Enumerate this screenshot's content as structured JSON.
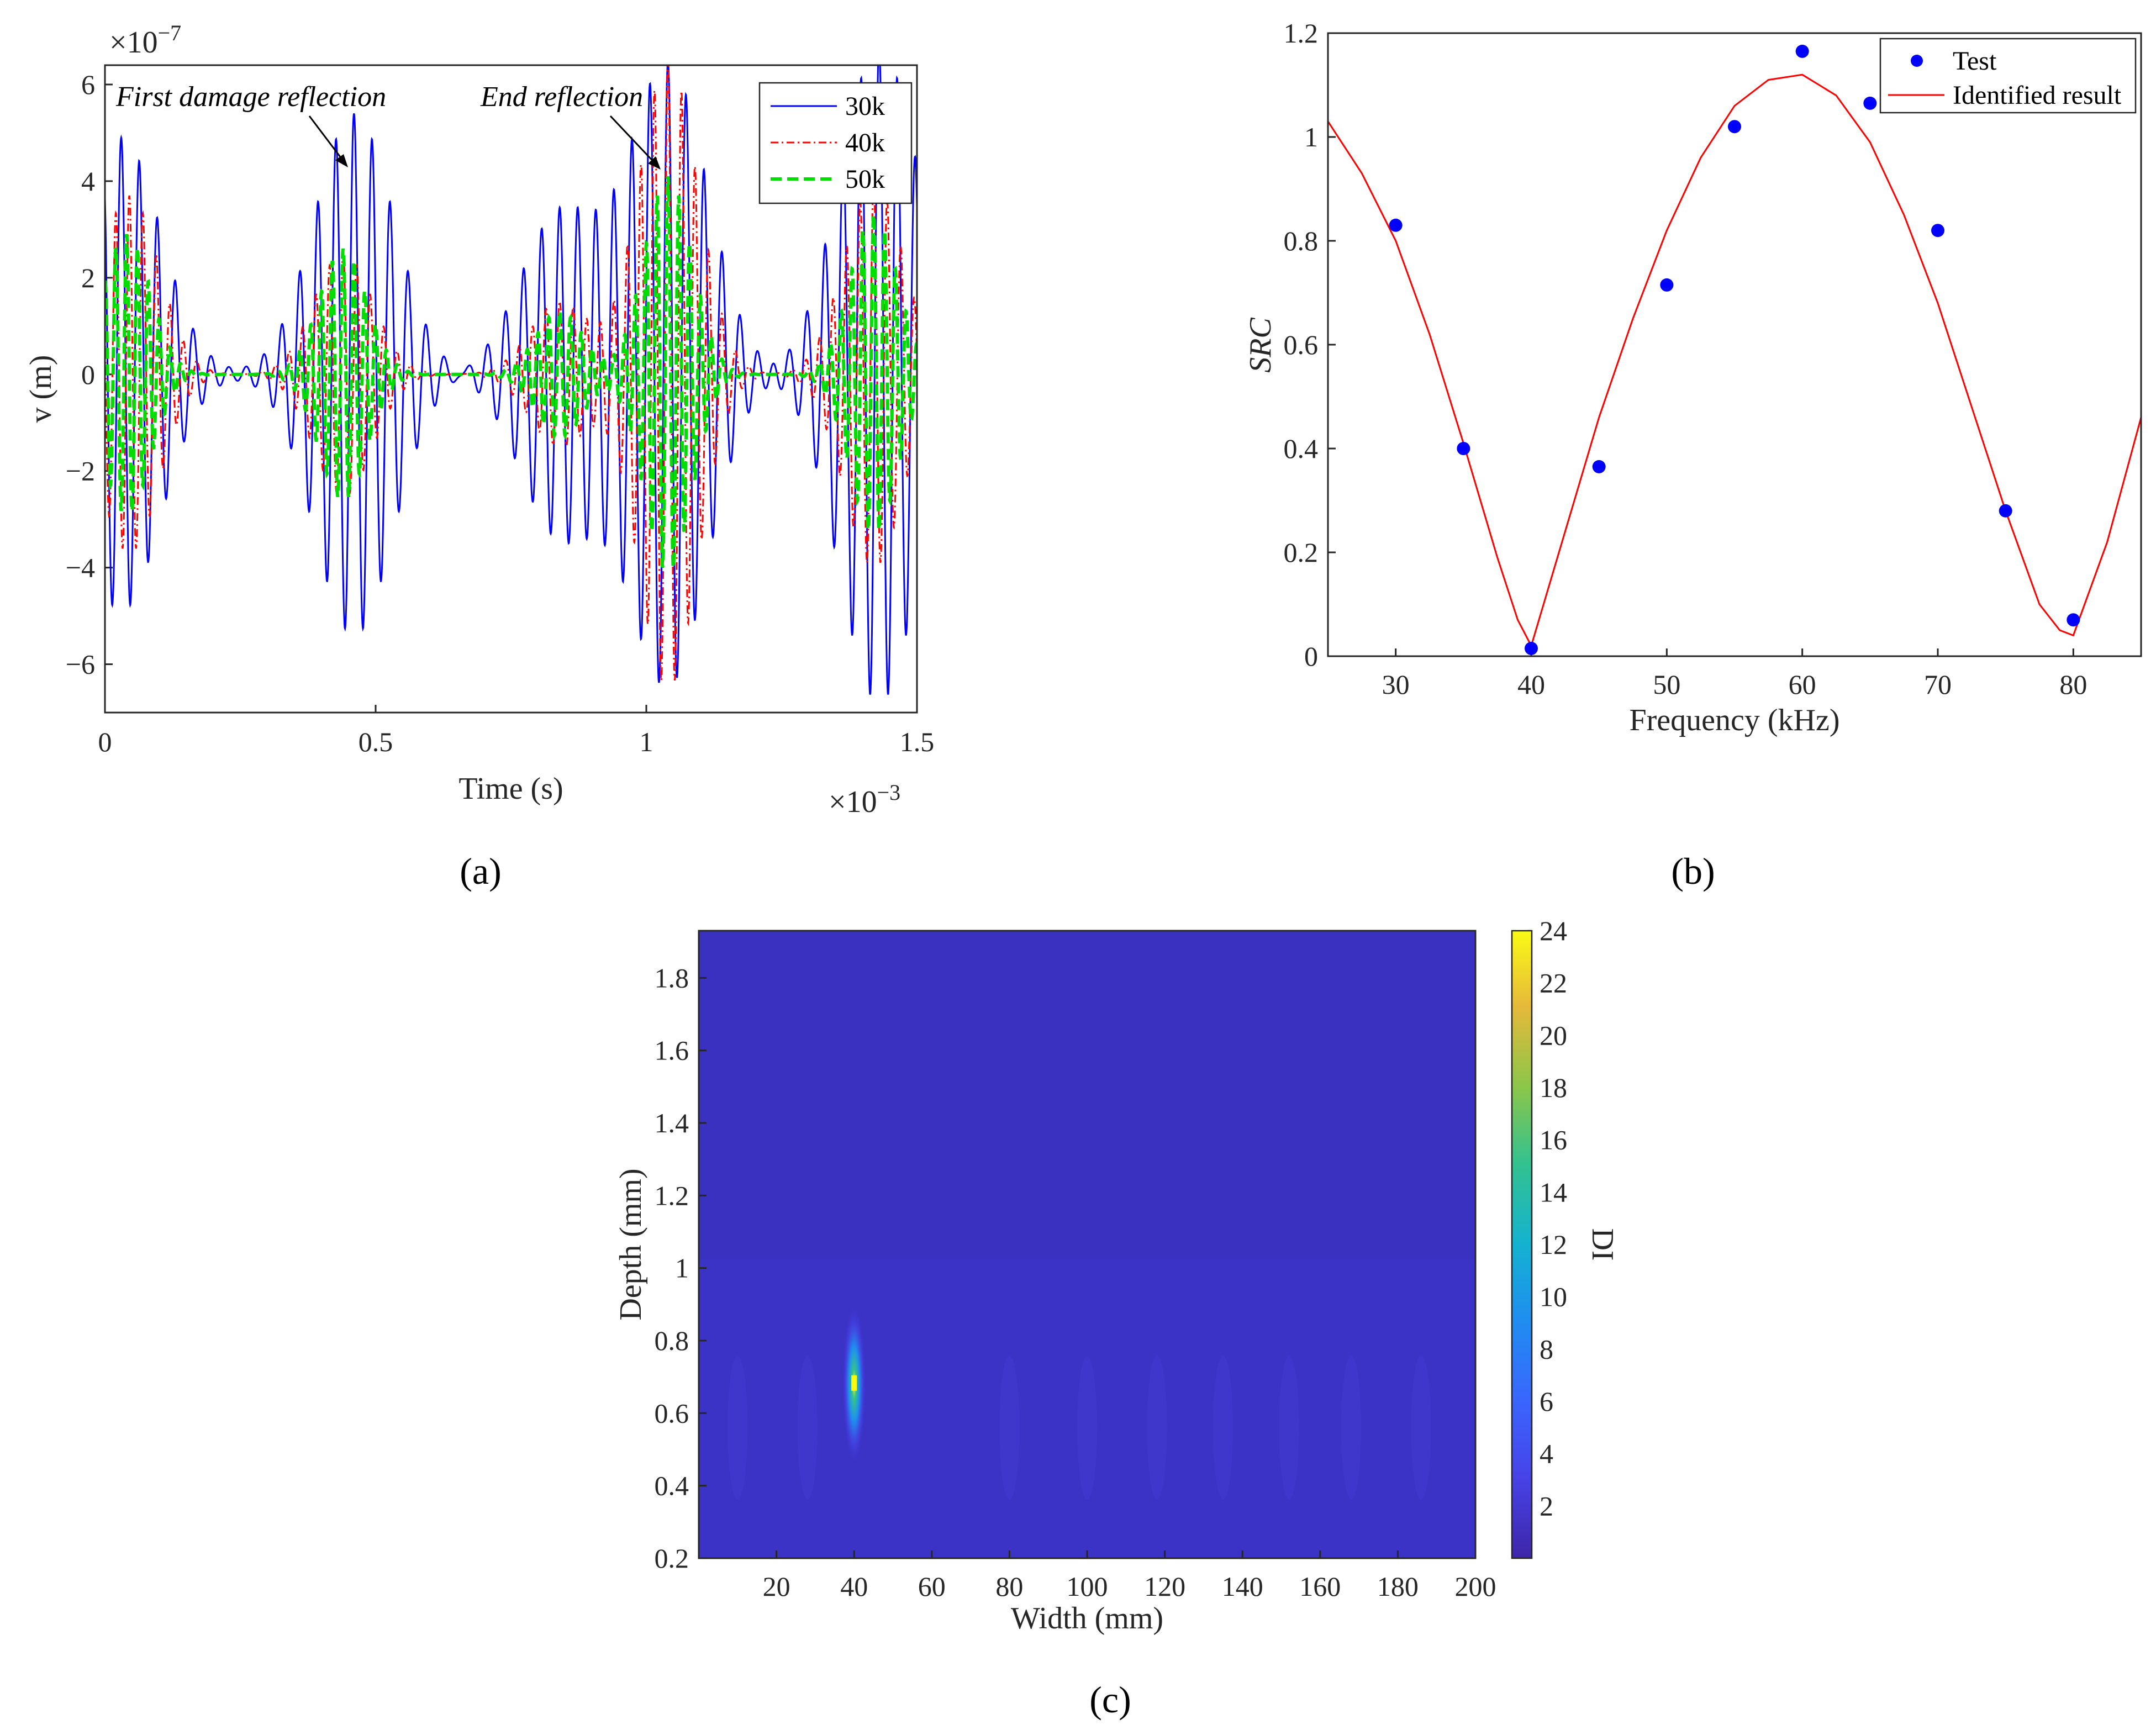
{
  "chart_data": [
    {
      "id": "a",
      "type": "line",
      "panel_label": "(a)",
      "xlabel": "Time (s)",
      "ylabel": "v (m)",
      "x_exponent": "×10^-3",
      "y_exponent": "×10^-7",
      "xlim": [
        0,
        1.5
      ],
      "ylim": [
        -7,
        6.4
      ],
      "xticks": [
        "0",
        "0.5",
        "1",
        "1.5"
      ],
      "yticks": [
        "-6",
        "-4",
        "-2",
        "0",
        "2",
        "4",
        "6"
      ],
      "annotations": [
        "First damage reflection",
        "End reflection"
      ],
      "series": [
        {
          "name": "30k",
          "color": "#0000ff",
          "style": "solid",
          "freq_khz": 30,
          "packets": [
            {
              "t": 0.03,
              "amp": 4.9
            },
            {
              "t": 0.46,
              "amp": 5.4
            },
            {
              "t": 0.84,
              "amp": 3.3
            },
            {
              "t": 1.04,
              "amp": 6.4
            },
            {
              "t": 1.43,
              "amp": 6.8
            }
          ]
        },
        {
          "name": "40k",
          "color": "#ff0000",
          "style": "dashdot",
          "freq_khz": 40,
          "packets": [
            {
              "t": 0.045,
              "amp": 3.7
            },
            {
              "t": 0.44,
              "amp": 2.5
            },
            {
              "t": 0.84,
              "amp": 1.5
            },
            {
              "t": 1.04,
              "amp": 6.5
            },
            {
              "t": 1.42,
              "amp": 4.0
            }
          ]
        },
        {
          "name": "50k",
          "color": "#00dd00",
          "style": "dashed",
          "freq_khz": 50,
          "packets": [
            {
              "t": 0.04,
              "amp": 2.9
            },
            {
              "t": 0.44,
              "amp": 2.6
            },
            {
              "t": 0.84,
              "amp": 1.3
            },
            {
              "t": 1.04,
              "amp": 4.1
            },
            {
              "t": 1.42,
              "amp": 3.3
            }
          ]
        }
      ]
    },
    {
      "id": "b",
      "type": "scatter",
      "panel_label": "(b)",
      "xlabel": "Frequency (kHz)",
      "ylabel": "SRC",
      "xlim": [
        25,
        85
      ],
      "ylim": [
        0,
        1.2
      ],
      "xticks": [
        "30",
        "40",
        "50",
        "60",
        "70",
        "80"
      ],
      "yticks": [
        "0",
        "0.2",
        "0.4",
        "0.6",
        "0.8",
        "1",
        "1.2"
      ],
      "series": [
        {
          "name": "Test",
          "color": "#0000ff",
          "marker": "dot",
          "x": [
            30,
            35,
            40,
            45,
            50,
            55,
            60,
            65,
            70,
            75,
            80
          ],
          "y": [
            0.83,
            0.4,
            0.015,
            0.365,
            0.715,
            1.02,
            1.165,
            1.065,
            0.82,
            0.28,
            0.07
          ]
        },
        {
          "name": "Identified result",
          "color": "#ff0000",
          "style": "solid",
          "x": [
            25,
            27.5,
            30,
            32.5,
            35,
            37.5,
            39,
            40,
            42.5,
            45,
            47.5,
            50,
            52.5,
            55,
            57.5,
            60,
            62.5,
            65,
            67.5,
            70,
            72.5,
            75,
            77.5,
            79,
            80,
            82.5,
            85
          ],
          "y": [
            1.03,
            0.93,
            0.8,
            0.62,
            0.41,
            0.19,
            0.07,
            0.02,
            0.24,
            0.46,
            0.65,
            0.82,
            0.96,
            1.06,
            1.11,
            1.12,
            1.08,
            0.99,
            0.85,
            0.68,
            0.48,
            0.28,
            0.1,
            0.05,
            0.04,
            0.22,
            0.46
          ]
        }
      ]
    },
    {
      "id": "c",
      "type": "heatmap",
      "panel_label": "(c)",
      "xlabel": "Width (mm)",
      "ylabel": "Depth (mm)",
      "colorbar_label": "DI",
      "xlim": [
        0,
        200
      ],
      "ylim": [
        0.2,
        1.93
      ],
      "clim": [
        0,
        24
      ],
      "xticks": [
        "20",
        "40",
        "60",
        "80",
        "100",
        "120",
        "140",
        "160",
        "180",
        "200"
      ],
      "yticks": [
        "0.2",
        "0.4",
        "0.6",
        "0.8",
        "1",
        "1.2",
        "1.4",
        "1.6",
        "1.8"
      ],
      "colorbar_ticks": [
        "2",
        "4",
        "6",
        "8",
        "10",
        "12",
        "14",
        "16",
        "18",
        "20",
        "22",
        "24"
      ],
      "background_value": 1.5,
      "peak": {
        "width_mm": 40,
        "depth_mm": 0.68,
        "value": 24
      }
    }
  ]
}
